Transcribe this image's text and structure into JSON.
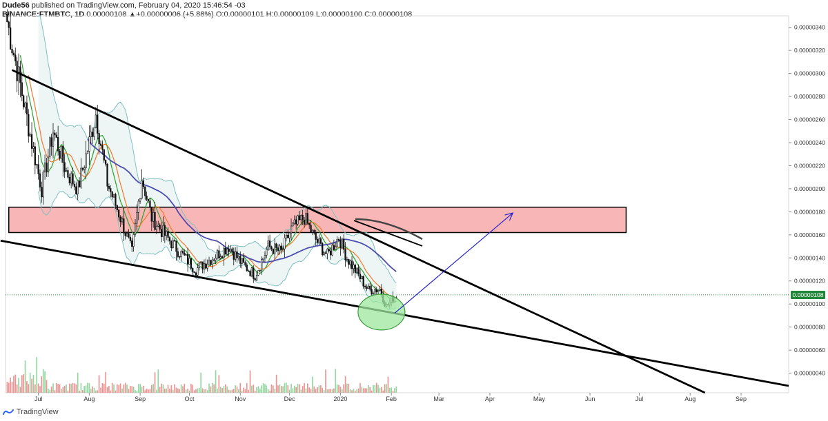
{
  "header": {
    "publisher": "Dude56",
    "published_line": " published on TradingView.com, February 04, 2020 15:46:54 -03",
    "symbol_line": "BINANCE:FTMBTC, 1D",
    "ohlc_line": " 0.00000108 ▲+0.00000006 (+5.88%) O:0.00000101 H:0.00000109 L:0.00000100 C:0.00000108"
  },
  "last_price": "0.00000108",
  "footer": {
    "brand": "TradingView",
    "logo_icon": "tradingview-logo-icon"
  },
  "colors": {
    "up_candle": "#ffffff",
    "down_candle": "#111111",
    "zone_fill": "#f8a9a9",
    "band": "#7fbfc0",
    "ma_fast": "#2aa02a",
    "ma_slow": "#f07a2a",
    "ma_long": "#4b4bb0",
    "ellipse": "#9ee59e",
    "arrow": "#2222cc",
    "price_badge": "#22863a"
  },
  "chart_data": {
    "type": "candlestick",
    "symbol": "BINANCE:FTMBTC",
    "interval": "1D",
    "x_ticks": [
      "Jul",
      "Aug",
      "Sep",
      "Oct",
      "Nov",
      "Dec",
      "2020",
      "Feb",
      "Mar",
      "Apr",
      "May",
      "Jun",
      "Jul",
      "Aug",
      "Sep"
    ],
    "y_ticks": [
      "0.00000340",
      "0.00000320",
      "0.00000300",
      "0.00000280",
      "0.00000260",
      "0.00000240",
      "0.00000220",
      "0.00000200",
      "0.00000180",
      "0.00000160",
      "0.00000140",
      "0.00000120",
      "0.00000100",
      "0.00000080",
      "0.00000060",
      "0.00000040"
    ],
    "ylim": [
      2.3e-07,
      3.5e-06
    ],
    "xlim": [
      "2019-06-11",
      "2020-09-30"
    ],
    "approx_close_series": [
      {
        "date": "2019-06-12",
        "close": 3.45e-06
      },
      {
        "date": "2019-06-20",
        "close": 2.9e-06
      },
      {
        "date": "2019-06-27",
        "close": 2.4e-06
      },
      {
        "date": "2019-07-03",
        "close": 2e-06
      },
      {
        "date": "2019-07-10",
        "close": 2.5e-06
      },
      {
        "date": "2019-07-18",
        "close": 2.15e-06
      },
      {
        "date": "2019-07-25",
        "close": 2e-06
      },
      {
        "date": "2019-08-01",
        "close": 2.4e-06
      },
      {
        "date": "2019-08-05",
        "close": 2.65e-06
      },
      {
        "date": "2019-08-12",
        "close": 2.05e-06
      },
      {
        "date": "2019-08-20",
        "close": 1.75e-06
      },
      {
        "date": "2019-08-27",
        "close": 1.45e-06
      },
      {
        "date": "2019-09-02",
        "close": 2.1e-06
      },
      {
        "date": "2019-09-08",
        "close": 1.75e-06
      },
      {
        "date": "2019-09-16",
        "close": 1.6e-06
      },
      {
        "date": "2019-09-25",
        "close": 1.45e-06
      },
      {
        "date": "2019-10-05",
        "close": 1.3e-06
      },
      {
        "date": "2019-10-15",
        "close": 1.4e-06
      },
      {
        "date": "2019-10-25",
        "close": 1.5e-06
      },
      {
        "date": "2019-11-02",
        "close": 1.35e-06
      },
      {
        "date": "2019-11-10",
        "close": 1.25e-06
      },
      {
        "date": "2019-11-18",
        "close": 1.5e-06
      },
      {
        "date": "2019-11-26",
        "close": 1.45e-06
      },
      {
        "date": "2019-12-02",
        "close": 1.65e-06
      },
      {
        "date": "2019-12-10",
        "close": 1.75e-06
      },
      {
        "date": "2019-12-16",
        "close": 1.58e-06
      },
      {
        "date": "2019-12-24",
        "close": 1.42e-06
      },
      {
        "date": "2019-12-31",
        "close": 1.58e-06
      },
      {
        "date": "2020-01-05",
        "close": 1.4e-06
      },
      {
        "date": "2020-01-12",
        "close": 1.25e-06
      },
      {
        "date": "2020-01-18",
        "close": 1.12e-06
      },
      {
        "date": "2020-01-25",
        "close": 1.13e-06
      },
      {
        "date": "2020-01-29",
        "close": 9.8e-07
      },
      {
        "date": "2020-02-04",
        "close": 1.08e-06
      }
    ],
    "moving_averages": [
      {
        "name": "MA fast",
        "color": "#2aa02a"
      },
      {
        "name": "MA slow",
        "color": "#f07a2a"
      },
      {
        "name": "MA long",
        "color": "#4b4bb0"
      }
    ],
    "bollinger_bands": {
      "color": "#7fbfc0"
    },
    "annotations": [
      {
        "type": "zone",
        "y_range": [
          1.62e-06,
          1.84e-06
        ],
        "x_range": [
          "2019-06-13",
          "2020-06-23"
        ],
        "color": "#f8a9a9"
      },
      {
        "type": "trendline",
        "from": {
          "date": "2019-06-15",
          "price": 3.03e-06
        },
        "to": {
          "date": "2020-08-10",
          "price": 2.3e-07
        }
      },
      {
        "type": "trendline",
        "from": {
          "date": "2019-06-08",
          "price": 1.55e-06
        },
        "to": {
          "date": "2020-09-30",
          "price": 2.9e-07
        }
      },
      {
        "type": "ellipse",
        "center": {
          "date": "2020-01-26",
          "price": 9.3e-07
        },
        "color": "#9ee59e"
      },
      {
        "type": "arrow",
        "from": {
          "date": "2020-02-03",
          "price": 9.2e-07
        },
        "to": {
          "date": "2020-04-15",
          "price": 1.79e-06
        },
        "color": "#2222cc"
      }
    ],
    "volume": "histogram at bottom (red/green), values not labeled"
  }
}
